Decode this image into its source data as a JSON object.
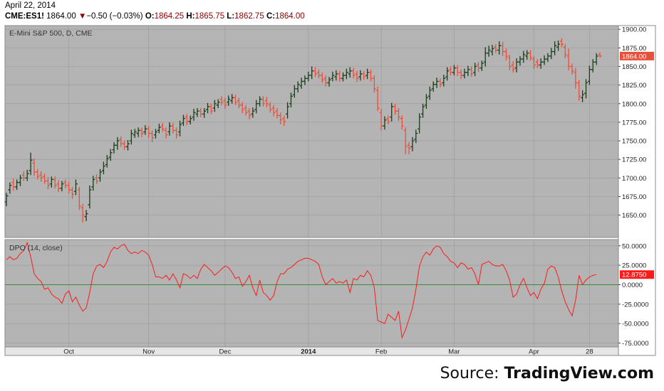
{
  "header": {
    "date": "April 22, 2014",
    "symbol": "CME:ES1!",
    "last": "1864.00",
    "change_arrow": "▼",
    "change": "−0.50 (−0.03%)",
    "open_label": "O:",
    "open": "1864.25",
    "high_label": "H:",
    "high": "1865.75",
    "low_label": "L:",
    "low": "1862.75",
    "close_label": "C:",
    "close": "1864.00"
  },
  "footer": {
    "source_label": "Source:",
    "source_brand": "TradingView.com"
  },
  "colors": {
    "panel_bg": "#b4b4b4",
    "up_bar": "#1a3d1a",
    "down_bar": "#e8503c",
    "dpo_line": "#ff1a1a",
    "zero_line": "#3a8a3a",
    "price_badge": "#e8503c",
    "dpo_badge": "#ff1a1a"
  },
  "chart_data": [
    {
      "type": "ohlc",
      "title": "E-Mini S&P 500, D, CME",
      "ylim": [
        1620,
        1905
      ],
      "yticks": [
        1650,
        1675,
        1700,
        1725,
        1750,
        1775,
        1800,
        1825,
        1850,
        1875,
        1900
      ],
      "ytick_labels": [
        "1650.00",
        "1675.00",
        "1700.00",
        "1725.00",
        "1750.00",
        "1775.00",
        "1800.00",
        "1825.00",
        "1850.00",
        "1875.00",
        "1900.00"
      ],
      "last_value_label": "1864.00",
      "x_ticks": [
        "Oct",
        "Nov",
        "Dec",
        "2014",
        "Feb",
        "Mar",
        "Apr",
        "28"
      ],
      "close": [
        1676,
        1690,
        1688,
        1694,
        1700,
        1700,
        1706,
        1724,
        1708,
        1702,
        1700,
        1696,
        1690,
        1698,
        1690,
        1686,
        1692,
        1690,
        1684,
        1678,
        1692,
        1662,
        1650,
        1652,
        1684,
        1698,
        1696,
        1708,
        1716,
        1726,
        1734,
        1744,
        1750,
        1746,
        1742,
        1746,
        1760,
        1762,
        1764,
        1760,
        1766,
        1760,
        1754,
        1762,
        1768,
        1766,
        1758,
        1770,
        1764,
        1758,
        1772,
        1780,
        1776,
        1780,
        1788,
        1790,
        1786,
        1790,
        1796,
        1790,
        1800,
        1802,
        1802,
        1798,
        1806,
        1808,
        1802,
        1798,
        1792,
        1788,
        1784,
        1790,
        1800,
        1806,
        1800,
        1800,
        1792,
        1788,
        1784,
        1778,
        1776,
        1796,
        1810,
        1820,
        1826,
        1830,
        1834,
        1838,
        1844,
        1840,
        1838,
        1832,
        1828,
        1832,
        1838,
        1840,
        1834,
        1838,
        1842,
        1844,
        1838,
        1834,
        1840,
        1836,
        1842,
        1834,
        1820,
        1794,
        1770,
        1778,
        1776,
        1796,
        1790,
        1782,
        1770,
        1742,
        1740,
        1750,
        1760,
        1782,
        1796,
        1808,
        1818,
        1826,
        1830,
        1826,
        1834,
        1844,
        1842,
        1848,
        1842,
        1838,
        1842,
        1846,
        1840,
        1850,
        1848,
        1854,
        1868,
        1872,
        1874,
        1872,
        1878,
        1870,
        1864,
        1850,
        1846,
        1856,
        1860,
        1866,
        1868,
        1862,
        1852,
        1852,
        1856,
        1860,
        1864,
        1870,
        1878,
        1880,
        1880,
        1866,
        1850,
        1844,
        1828,
        1810,
        1812,
        1828,
        1846,
        1856,
        1864,
        1864
      ],
      "open_offsets": [
        -8,
        -6,
        6,
        -6,
        -6,
        4,
        -6,
        -14,
        12,
        6,
        4,
        6,
        6,
        -6,
        8,
        6,
        -6,
        4,
        6,
        6,
        -10,
        22,
        10,
        -4,
        -20,
        -10,
        4,
        -8,
        -6,
        -8,
        -6,
        -6,
        -6,
        6,
        4,
        -4,
        -10,
        -4,
        -4,
        4,
        -4,
        6,
        6,
        -4,
        -4,
        4,
        6,
        -8,
        6,
        6,
        -10,
        -6,
        6,
        -4,
        -6,
        -4,
        4,
        -4,
        -4,
        6,
        -6,
        -4,
        4,
        6,
        -4,
        -4,
        6,
        6,
        6,
        6,
        6,
        -4,
        -8,
        -6,
        6,
        4,
        6,
        6,
        6,
        6,
        4,
        -10,
        -10,
        -8,
        -6,
        -6,
        -4,
        -4,
        -6,
        4,
        4,
        6,
        6,
        -4,
        -4,
        -4,
        6,
        -4,
        -4,
        -4,
        6,
        6,
        -4,
        4,
        -4,
        8,
        14,
        24,
        18,
        -8,
        4,
        -14,
        6,
        8,
        10,
        22,
        4,
        -8,
        -8,
        -16,
        -10,
        -10,
        -8,
        -6,
        -4,
        4,
        -6,
        -8,
        4,
        -6,
        6,
        4,
        -4,
        -4,
        6,
        -8,
        4,
        -6,
        -12,
        -4,
        -4,
        4,
        -6,
        8,
        6,
        12,
        6,
        -8,
        -4,
        -6,
        -4,
        6,
        8,
        4,
        -4,
        -4,
        -4,
        -6,
        -8,
        -4,
        4,
        10,
        14,
        6,
        14,
        18,
        -4,
        -14,
        -16,
        -10,
        -8,
        2
      ],
      "range_up": [
        4,
        4,
        5,
        4,
        4,
        5,
        5,
        10,
        6,
        4,
        5,
        4,
        5,
        4,
        4,
        5,
        4,
        4,
        5,
        4,
        6,
        4,
        5,
        5,
        6,
        5,
        5,
        4,
        6,
        5,
        5,
        4,
        5,
        4,
        4,
        5,
        5,
        4,
        4,
        4,
        5,
        4,
        4,
        4,
        5,
        4,
        4,
        5,
        4,
        4,
        5,
        5,
        4,
        4,
        5,
        4,
        4,
        4,
        5,
        4,
        5,
        4,
        4,
        4,
        5,
        5,
        4,
        4,
        4,
        4,
        4,
        5,
        5,
        4,
        4,
        5,
        4,
        4,
        4,
        4,
        4,
        6,
        5,
        5,
        4,
        5,
        4,
        5,
        6,
        5,
        4,
        4,
        4,
        4,
        5,
        5,
        4,
        4,
        5,
        5,
        4,
        4,
        5,
        4,
        5,
        4,
        4,
        5,
        5,
        5,
        4,
        5,
        4,
        4,
        4,
        4,
        4,
        5,
        5,
        5,
        4,
        5,
        5,
        4,
        5,
        4,
        5,
        5,
        4,
        4,
        4,
        4,
        5,
        5,
        4,
        5,
        4,
        4,
        8,
        6,
        5,
        4,
        6,
        5,
        4,
        4,
        5,
        5,
        4,
        5,
        4,
        4,
        4,
        4,
        5,
        5,
        4,
        5,
        6,
        5,
        4,
        4,
        10,
        4,
        6,
        4,
        6,
        5,
        5,
        4,
        4,
        3
      ],
      "range_down": [
        6,
        5,
        5,
        4,
        5,
        4,
        4,
        6,
        5,
        4,
        5,
        4,
        5,
        5,
        4,
        5,
        4,
        4,
        5,
        6,
        5,
        5,
        10,
        6,
        5,
        5,
        4,
        5,
        5,
        4,
        5,
        5,
        6,
        4,
        4,
        5,
        5,
        4,
        5,
        5,
        4,
        6,
        6,
        5,
        4,
        4,
        5,
        5,
        4,
        5,
        6,
        4,
        5,
        4,
        5,
        4,
        4,
        5,
        5,
        4,
        5,
        4,
        4,
        5,
        5,
        4,
        4,
        4,
        5,
        4,
        5,
        5,
        5,
        4,
        4,
        5,
        4,
        5,
        4,
        6,
        6,
        6,
        5,
        4,
        5,
        4,
        5,
        4,
        5,
        4,
        4,
        4,
        5,
        5,
        4,
        5,
        4,
        4,
        5,
        5,
        4,
        5,
        5,
        4,
        5,
        4,
        5,
        4,
        6,
        5,
        4,
        6,
        5,
        5,
        5,
        10,
        8,
        6,
        5,
        6,
        5,
        5,
        5,
        4,
        5,
        4,
        5,
        5,
        4,
        4,
        5,
        5,
        4,
        5,
        4,
        5,
        5,
        4,
        6,
        5,
        5,
        4,
        6,
        6,
        6,
        5,
        4,
        6,
        5,
        5,
        5,
        4,
        5,
        4,
        5,
        4,
        4,
        4,
        5,
        5,
        4,
        5,
        5,
        5,
        8,
        6,
        6,
        7,
        5,
        4,
        4,
        2
      ]
    },
    {
      "type": "line",
      "title": "DPO (14, close)",
      "ylim": [
        -80,
        58
      ],
      "yticks": [
        50,
        25,
        0,
        -25,
        -50,
        -75
      ],
      "ytick_labels": [
        "50.0000",
        "25.0000",
        "0.0000",
        "-25.0000",
        "-50.0000",
        "-75.0000"
      ],
      "last_value_label": "12.8750",
      "values": [
        32,
        36,
        32,
        34,
        40,
        44,
        54,
        36,
        14,
        8,
        4,
        -6,
        -4,
        -12,
        -16,
        -18,
        -24,
        -12,
        -8,
        -22,
        -16,
        -26,
        -34,
        -30,
        -10,
        14,
        24,
        26,
        22,
        30,
        42,
        48,
        46,
        50,
        52,
        44,
        40,
        42,
        40,
        44,
        42,
        38,
        26,
        10,
        10,
        8,
        12,
        6,
        14,
        6,
        -4,
        14,
        12,
        8,
        12,
        8,
        20,
        26,
        22,
        18,
        12,
        16,
        20,
        24,
        22,
        16,
        8,
        10,
        -2,
        4,
        12,
        -4,
        -14,
        6,
        -10,
        -14,
        -20,
        -14,
        4,
        14,
        14,
        20,
        22,
        26,
        30,
        32,
        34,
        34,
        32,
        30,
        26,
        10,
        0,
        4,
        8,
        2,
        4,
        2,
        6,
        -10,
        8,
        6,
        12,
        10,
        18,
        12,
        -4,
        -46,
        -48,
        -50,
        -38,
        -42,
        -46,
        -34,
        -68,
        -58,
        -44,
        -30,
        -6,
        24,
        36,
        42,
        38,
        46,
        50,
        48,
        40,
        36,
        30,
        28,
        22,
        28,
        26,
        20,
        22,
        14,
        0,
        26,
        28,
        30,
        26,
        24,
        24,
        26,
        18,
        6,
        -16,
        -12,
        0,
        8,
        -4,
        -14,
        -10,
        -18,
        -6,
        2,
        20,
        24,
        22,
        10,
        -8,
        -22,
        -32,
        -40,
        -20,
        12,
        0,
        6,
        10,
        12,
        13
      ]
    }
  ]
}
